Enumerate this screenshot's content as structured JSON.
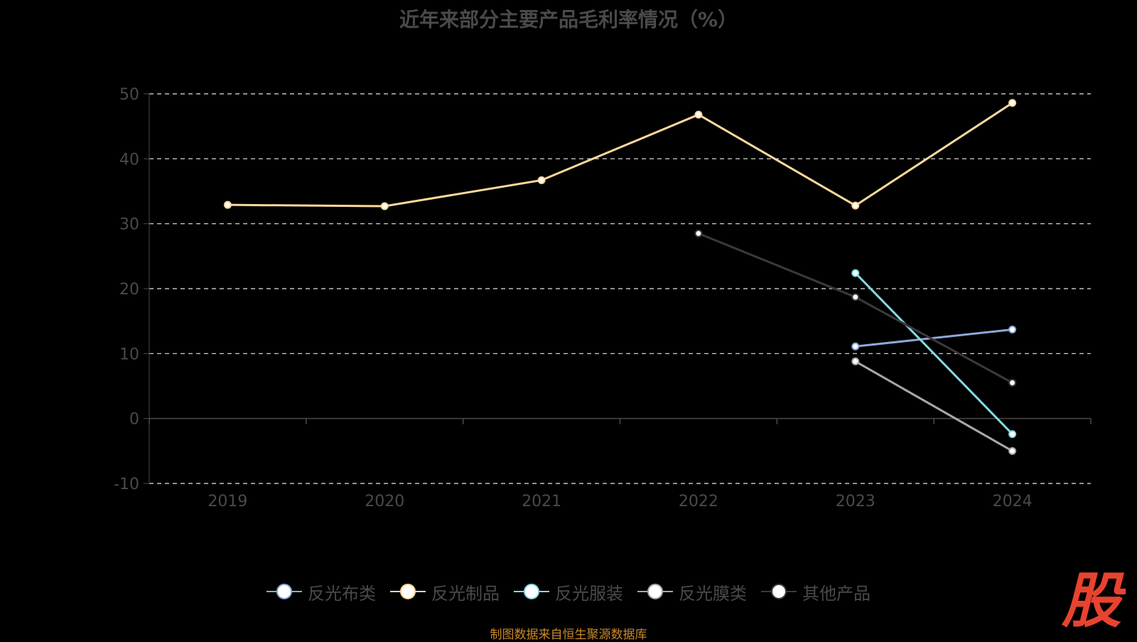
{
  "chart_data": {
    "type": "line",
    "title": "近年来部分主要产品毛利率情况（%）",
    "categories": [
      "2019",
      "2020",
      "2021",
      "2022",
      "2023",
      "2024"
    ],
    "ylim": [
      -10,
      50
    ],
    "yticks": [
      "50",
      "40",
      "30",
      "20",
      "10",
      "0",
      "-10"
    ],
    "grid": true,
    "legend_position": "bottom",
    "series": [
      {
        "name": "反光布类",
        "color": "#8fa8d8",
        "values": [
          null,
          null,
          null,
          null,
          11.1,
          13.7
        ]
      },
      {
        "name": "反光制品",
        "color": "#fbd89b",
        "values": [
          32.9,
          32.7,
          36.7,
          46.8,
          32.8,
          48.6
        ]
      },
      {
        "name": "反光服装",
        "color": "#86d9dd",
        "values": [
          null,
          null,
          null,
          null,
          22.4,
          -2.4
        ]
      },
      {
        "name": "反光膜类",
        "color": "#a8a8a8",
        "values": [
          null,
          null,
          null,
          null,
          8.8,
          -5.0
        ]
      },
      {
        "name": "其他产品",
        "color": "#3a3a3a",
        "values": [
          null,
          null,
          null,
          28.5,
          18.7,
          5.5
        ]
      }
    ]
  },
  "footer": {
    "source": "制图数据来自恒生聚源数据库",
    "logo_text": "股",
    "logo_color": "#e8432f"
  }
}
